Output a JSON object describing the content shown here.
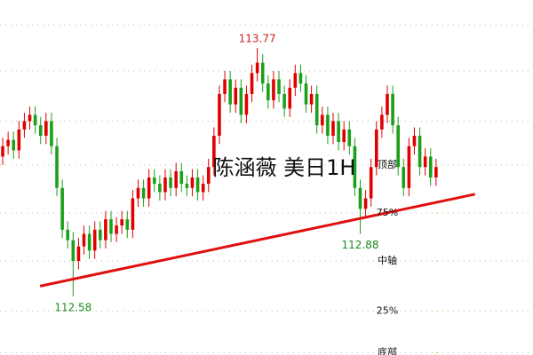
{
  "chart_data": {
    "type": "candlestick",
    "watermark": "陈涵薇 美日1H",
    "up_color": "#e00000",
    "down_color": "#1aa01a",
    "ylim": [
      112.3,
      114.0
    ],
    "xlim": [
      -0.5,
      97.9
    ],
    "grid_lines": [
      113.88,
      113.66,
      113.42,
      113.21,
      112.98,
      112.75,
      112.51,
      112.31
    ],
    "levels": [
      {
        "value": 113.21,
        "label": "顶部"
      },
      {
        "value": 112.98,
        "label": "75%"
      },
      {
        "value": 112.75,
        "label": "中轴"
      },
      {
        "value": 112.51,
        "label": "25%"
      },
      {
        "value": 112.31,
        "label": "底部"
      }
    ],
    "trendline": {
      "x": [
        6.9,
        87.2
      ],
      "y": [
        112.63,
        113.07
      ],
      "color": "#e01010"
    },
    "annotations": [
      {
        "text": "113.77",
        "candle": 47,
        "at": "high",
        "color": "#d02020"
      },
      {
        "text": "112.58",
        "candle": 13,
        "at": "low",
        "color": "#1a8a1a"
      },
      {
        "text": "112.88",
        "candle": 66,
        "at": "low",
        "color": "#1a8a1a"
      }
    ],
    "ohlc": [
      [
        113.25,
        113.34,
        113.21,
        113.3
      ],
      [
        113.3,
        113.37,
        113.26,
        113.33
      ],
      [
        113.33,
        113.37,
        113.24,
        113.28
      ],
      [
        113.28,
        113.42,
        113.24,
        113.38
      ],
      [
        113.38,
        113.46,
        113.34,
        113.42
      ],
      [
        113.42,
        113.49,
        113.38,
        113.45
      ],
      [
        113.45,
        113.49,
        113.36,
        113.4
      ],
      [
        113.4,
        113.44,
        113.31,
        113.35
      ],
      [
        113.35,
        113.46,
        113.31,
        113.42
      ],
      [
        113.42,
        113.46,
        113.26,
        113.3
      ],
      [
        113.3,
        113.34,
        113.06,
        113.1
      ],
      [
        113.1,
        113.14,
        112.86,
        112.9
      ],
      [
        112.9,
        112.94,
        112.81,
        112.85
      ],
      [
        112.85,
        112.89,
        112.58,
        112.75
      ],
      [
        112.75,
        112.86,
        112.71,
        112.82
      ],
      [
        112.82,
        112.92,
        112.78,
        112.88
      ],
      [
        112.88,
        112.92,
        112.76,
        112.8
      ],
      [
        112.8,
        112.94,
        112.76,
        112.9
      ],
      [
        112.9,
        112.94,
        112.81,
        112.85
      ],
      [
        112.85,
        112.99,
        112.81,
        112.95
      ],
      [
        112.95,
        112.99,
        112.84,
        112.88
      ],
      [
        112.88,
        112.96,
        112.84,
        112.92
      ],
      [
        112.92,
        112.99,
        112.88,
        112.95
      ],
      [
        112.95,
        112.99,
        112.86,
        112.9
      ],
      [
        112.9,
        113.09,
        112.86,
        113.05
      ],
      [
        113.05,
        113.14,
        113.01,
        113.1
      ],
      [
        113.1,
        113.14,
        113.01,
        113.05
      ],
      [
        113.05,
        113.19,
        113.01,
        113.15
      ],
      [
        113.15,
        113.19,
        113.08,
        113.12
      ],
      [
        113.12,
        113.16,
        113.04,
        113.08
      ],
      [
        113.08,
        113.19,
        113.04,
        113.15
      ],
      [
        113.15,
        113.19,
        113.06,
        113.1
      ],
      [
        113.1,
        113.22,
        113.06,
        113.18
      ],
      [
        113.18,
        113.22,
        113.08,
        113.12
      ],
      [
        113.12,
        113.16,
        113.06,
        113.1
      ],
      [
        113.1,
        113.19,
        113.06,
        113.15
      ],
      [
        113.15,
        113.19,
        113.04,
        113.08
      ],
      [
        113.08,
        113.16,
        113.04,
        113.12
      ],
      [
        113.12,
        113.24,
        113.08,
        113.2
      ],
      [
        113.2,
        113.39,
        113.16,
        113.35
      ],
      [
        113.35,
        113.59,
        113.31,
        113.55
      ],
      [
        113.55,
        113.66,
        113.51,
        113.62
      ],
      [
        113.62,
        113.66,
        113.46,
        113.5
      ],
      [
        113.5,
        113.62,
        113.46,
        113.58
      ],
      [
        113.58,
        113.62,
        113.41,
        113.45
      ],
      [
        113.45,
        113.59,
        113.41,
        113.55
      ],
      [
        113.55,
        113.69,
        113.51,
        113.65
      ],
      [
        113.65,
        113.77,
        113.61,
        113.7
      ],
      [
        113.7,
        113.74,
        113.56,
        113.6
      ],
      [
        113.6,
        113.64,
        113.48,
        113.52
      ],
      [
        113.52,
        113.66,
        113.48,
        113.62
      ],
      [
        113.62,
        113.66,
        113.51,
        113.55
      ],
      [
        113.55,
        113.59,
        113.44,
        113.48
      ],
      [
        113.48,
        113.62,
        113.44,
        113.58
      ],
      [
        113.58,
        113.69,
        113.54,
        113.65
      ],
      [
        113.65,
        113.69,
        113.56,
        113.6
      ],
      [
        113.6,
        113.64,
        113.46,
        113.5
      ],
      [
        113.5,
        113.59,
        113.46,
        113.55
      ],
      [
        113.55,
        113.59,
        113.36,
        113.4
      ],
      [
        113.4,
        113.49,
        113.36,
        113.45
      ],
      [
        113.45,
        113.49,
        113.31,
        113.35
      ],
      [
        113.35,
        113.46,
        113.31,
        113.42
      ],
      [
        113.42,
        113.46,
        113.28,
        113.32
      ],
      [
        113.32,
        113.42,
        113.28,
        113.38
      ],
      [
        113.38,
        113.42,
        113.26,
        113.3
      ],
      [
        113.3,
        113.34,
        113.06,
        113.1
      ],
      [
        113.1,
        113.14,
        112.88,
        113.0
      ],
      [
        113.0,
        113.09,
        112.96,
        113.05
      ],
      [
        113.05,
        113.24,
        113.01,
        113.2
      ],
      [
        113.2,
        113.42,
        113.16,
        113.38
      ],
      [
        113.38,
        113.49,
        113.34,
        113.45
      ],
      [
        113.45,
        113.59,
        113.41,
        113.55
      ],
      [
        113.55,
        113.59,
        113.36,
        113.4
      ],
      [
        113.4,
        113.44,
        113.16,
        113.2
      ],
      [
        113.2,
        113.24,
        113.06,
        113.1
      ],
      [
        113.1,
        113.34,
        113.06,
        113.3
      ],
      [
        113.3,
        113.39,
        113.26,
        113.35
      ],
      [
        113.35,
        113.39,
        113.16,
        113.2
      ],
      [
        113.2,
        113.29,
        113.16,
        113.25
      ],
      [
        113.25,
        113.29,
        113.11,
        113.15
      ],
      [
        113.15,
        113.24,
        113.11,
        113.2
      ]
    ]
  }
}
